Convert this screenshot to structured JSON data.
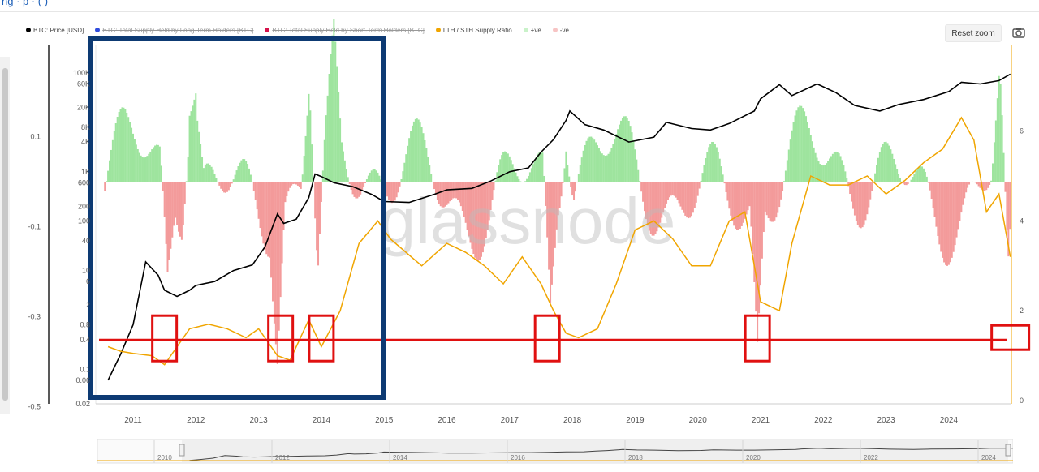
{
  "header": {
    "crumb": "ng · p · ( )"
  },
  "legend": [
    {
      "label": "BTC: Price [USD]",
      "color": "#000000",
      "struck": false
    },
    {
      "label": "BTC: Total Supply Held by Long-Term Holders [BTC]",
      "color": "#2f4cdd",
      "struck": true
    },
    {
      "label": "BTC: Total Supply Held by Short-Term Holders [BTC]",
      "color": "#d6124a",
      "struck": true
    },
    {
      "label": "LTH / STH Supply Ratio",
      "color": "#f0a500",
      "struck": false
    },
    {
      "label": "+ve",
      "color": "#c9f2c9",
      "struck": false
    },
    {
      "label": "-ve",
      "color": "#f7c4c4",
      "struck": false
    }
  ],
  "toolbar": {
    "reset_zoom": "Reset zoom",
    "camera_icon": "camera-icon"
  },
  "watermark": "glassnode",
  "colors": {
    "price": "#000000",
    "ratio": "#f0a500",
    "pos": "#8ee08e",
    "neg": "#f28a8a",
    "highlight_box": "#e01010",
    "highlight_region": "#0d3a73"
  },
  "chart_data": {
    "type": "line",
    "x_ticks": [
      "2011",
      "2012",
      "2013",
      "2014",
      "2015",
      "2016",
      "2017",
      "2018",
      "2019",
      "2020",
      "2021",
      "2022",
      "2023",
      "2024"
    ],
    "price_axis_ticks": [
      "100K",
      "60K",
      "20K",
      "8K",
      "4K",
      "1K",
      "600",
      "200",
      "100",
      "40",
      "10",
      "6",
      "2",
      "0.8",
      "0.4",
      "0.1",
      "0.06",
      "0.02"
    ],
    "left_axis_ticks": [
      "0.1",
      "-0.1",
      "-0.3",
      "-0.5"
    ],
    "right_axis_ticks": [
      "6",
      "4",
      "2",
      "0"
    ],
    "navigator_ticks": [
      "2010",
      "2012",
      "2014",
      "2016",
      "2018",
      "2020",
      "2022",
      "2024"
    ],
    "series": [
      {
        "name": "BTC: Price [USD]",
        "axis": "log",
        "x": [
          2010.6,
          2010.8,
          2011.0,
          2011.2,
          2011.4,
          2011.5,
          2011.7,
          2011.9,
          2012.0,
          2012.3,
          2012.6,
          2012.9,
          2013.1,
          2013.3,
          2013.4,
          2013.6,
          2013.8,
          2013.9,
          2014.0,
          2014.2,
          2014.5,
          2014.8,
          2015.0,
          2015.4,
          2015.8,
          2016.0,
          2016.4,
          2016.7,
          2017.0,
          2017.3,
          2017.5,
          2017.7,
          2017.9,
          2017.96,
          2018.2,
          2018.5,
          2018.9,
          2019.3,
          2019.5,
          2019.9,
          2020.2,
          2020.5,
          2020.9,
          2021.0,
          2021.3,
          2021.5,
          2021.9,
          2022.2,
          2022.5,
          2022.9,
          2023.2,
          2023.6,
          2024.0,
          2024.2,
          2024.5,
          2024.8,
          2024.98
        ],
        "values": [
          0.06,
          0.2,
          0.8,
          15,
          8,
          4,
          3,
          4,
          5,
          6,
          10,
          13,
          30,
          140,
          90,
          110,
          300,
          900,
          800,
          600,
          500,
          350,
          250,
          240,
          350,
          430,
          460,
          650,
          1000,
          1200,
          2500,
          4500,
          11000,
          17000,
          9000,
          7000,
          4000,
          5000,
          10000,
          7500,
          7000,
          9500,
          17000,
          30000,
          58000,
          35000,
          60000,
          40000,
          22000,
          17000,
          23000,
          29000,
          42000,
          65000,
          60000,
          70000,
          95000
        ]
      },
      {
        "name": "LTH / STH Supply Ratio",
        "axis": "right",
        "x": [
          2010.6,
          2010.8,
          2011.0,
          2011.3,
          2011.5,
          2011.6,
          2011.9,
          2012.2,
          2012.5,
          2012.8,
          2013.0,
          2013.3,
          2013.5,
          2013.8,
          2014.0,
          2014.3,
          2014.6,
          2014.9,
          2015.1,
          2015.6,
          2016.0,
          2016.3,
          2016.6,
          2016.9,
          2017.2,
          2017.5,
          2017.7,
          2017.9,
          2018.1,
          2018.4,
          2018.7,
          2019.0,
          2019.3,
          2019.6,
          2019.9,
          2020.2,
          2020.5,
          2020.75,
          2021.0,
          2021.3,
          2021.5,
          2021.8,
          2022.1,
          2022.4,
          2022.7,
          2023.0,
          2023.3,
          2023.6,
          2023.9,
          2024.2,
          2024.4,
          2024.6,
          2024.8,
          2024.98
        ],
        "values": [
          1.2,
          1.1,
          1.05,
          1.0,
          0.8,
          1.0,
          1.6,
          1.7,
          1.6,
          1.4,
          1.6,
          1.0,
          0.9,
          1.8,
          1.2,
          2.0,
          3.5,
          4.0,
          3.6,
          3.0,
          3.5,
          3.3,
          3.0,
          2.6,
          3.2,
          2.6,
          2.0,
          1.5,
          1.4,
          1.6,
          2.6,
          3.8,
          4.0,
          3.6,
          3.0,
          3.0,
          4.0,
          4.2,
          2.2,
          2.0,
          3.5,
          5.0,
          4.8,
          4.8,
          5.0,
          4.6,
          4.9,
          5.3,
          5.6,
          6.3,
          5.8,
          4.2,
          4.6,
          3.2
        ]
      }
    ],
    "highlight_line_ratio": 1.35,
    "highlight_boxes_years": [
      2011.5,
      2013.35,
      2014.0,
      2017.6,
      2020.95,
      2024.98
    ]
  }
}
